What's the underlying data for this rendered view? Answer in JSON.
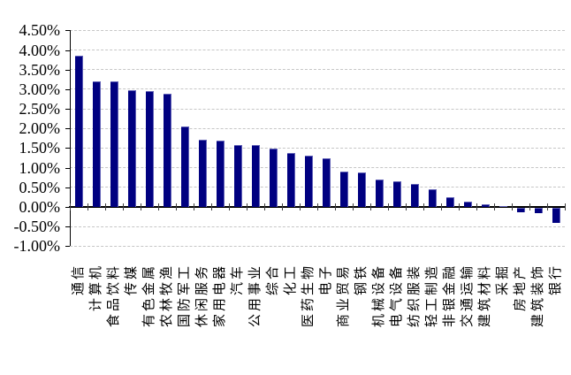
{
  "chart_data": {
    "type": "bar",
    "title": "",
    "xlabel": "",
    "ylabel": "",
    "categories": [
      "通信",
      "计算机",
      "食品饮料",
      "传媒",
      "有色金属",
      "农林牧渔",
      "国防军工",
      "休闲服务",
      "家用电器",
      "汽车",
      "公用事业",
      "综合",
      "化工",
      "医药生物",
      "电子",
      "商业贸易",
      "钢铁",
      "机械设备",
      "电气设备",
      "纺织服装",
      "轻工制造",
      "非银金融",
      "交通运输",
      "建筑材料",
      "采掘",
      "房地产",
      "建筑装饰",
      "银行"
    ],
    "values": [
      3.86,
      3.21,
      3.19,
      2.97,
      2.95,
      2.88,
      2.05,
      1.72,
      1.68,
      1.58,
      1.57,
      1.49,
      1.38,
      1.31,
      1.23,
      0.9,
      0.89,
      0.71,
      0.66,
      0.58,
      0.45,
      0.25,
      0.14,
      0.07,
      0.02,
      -0.13,
      -0.15,
      -0.4
    ],
    "value_unit": "%",
    "ylim_pct": [
      -1.0,
      4.5
    ],
    "ytick_step_pct": 0.5,
    "ytick_labels": [
      "4.50%",
      "4.00%",
      "3.50%",
      "3.00%",
      "2.50%",
      "2.00%",
      "1.50%",
      "1.00%",
      "0.50%",
      "0.00%",
      "-0.50%",
      "-1.00%"
    ],
    "grid": "horizontal-dashed",
    "legend": "none",
    "bar_sort": "descending",
    "xlabel_rotation_deg": 90
  },
  "colors": {
    "bar": "#000080",
    "gridline": "#c6c6c6",
    "axis": "#000000",
    "background": "#ffffff"
  }
}
